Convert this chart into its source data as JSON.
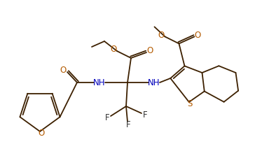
{
  "bg_color": "#ffffff",
  "bond_color": "#3d2000",
  "atom_colors": {
    "O": "#b35a00",
    "N": "#0000bb",
    "S": "#b35a00",
    "F": "#333333",
    "C": "#222222"
  },
  "figsize": [
    3.64,
    2.36
  ],
  "dpi": 100,
  "lw": 1.3
}
